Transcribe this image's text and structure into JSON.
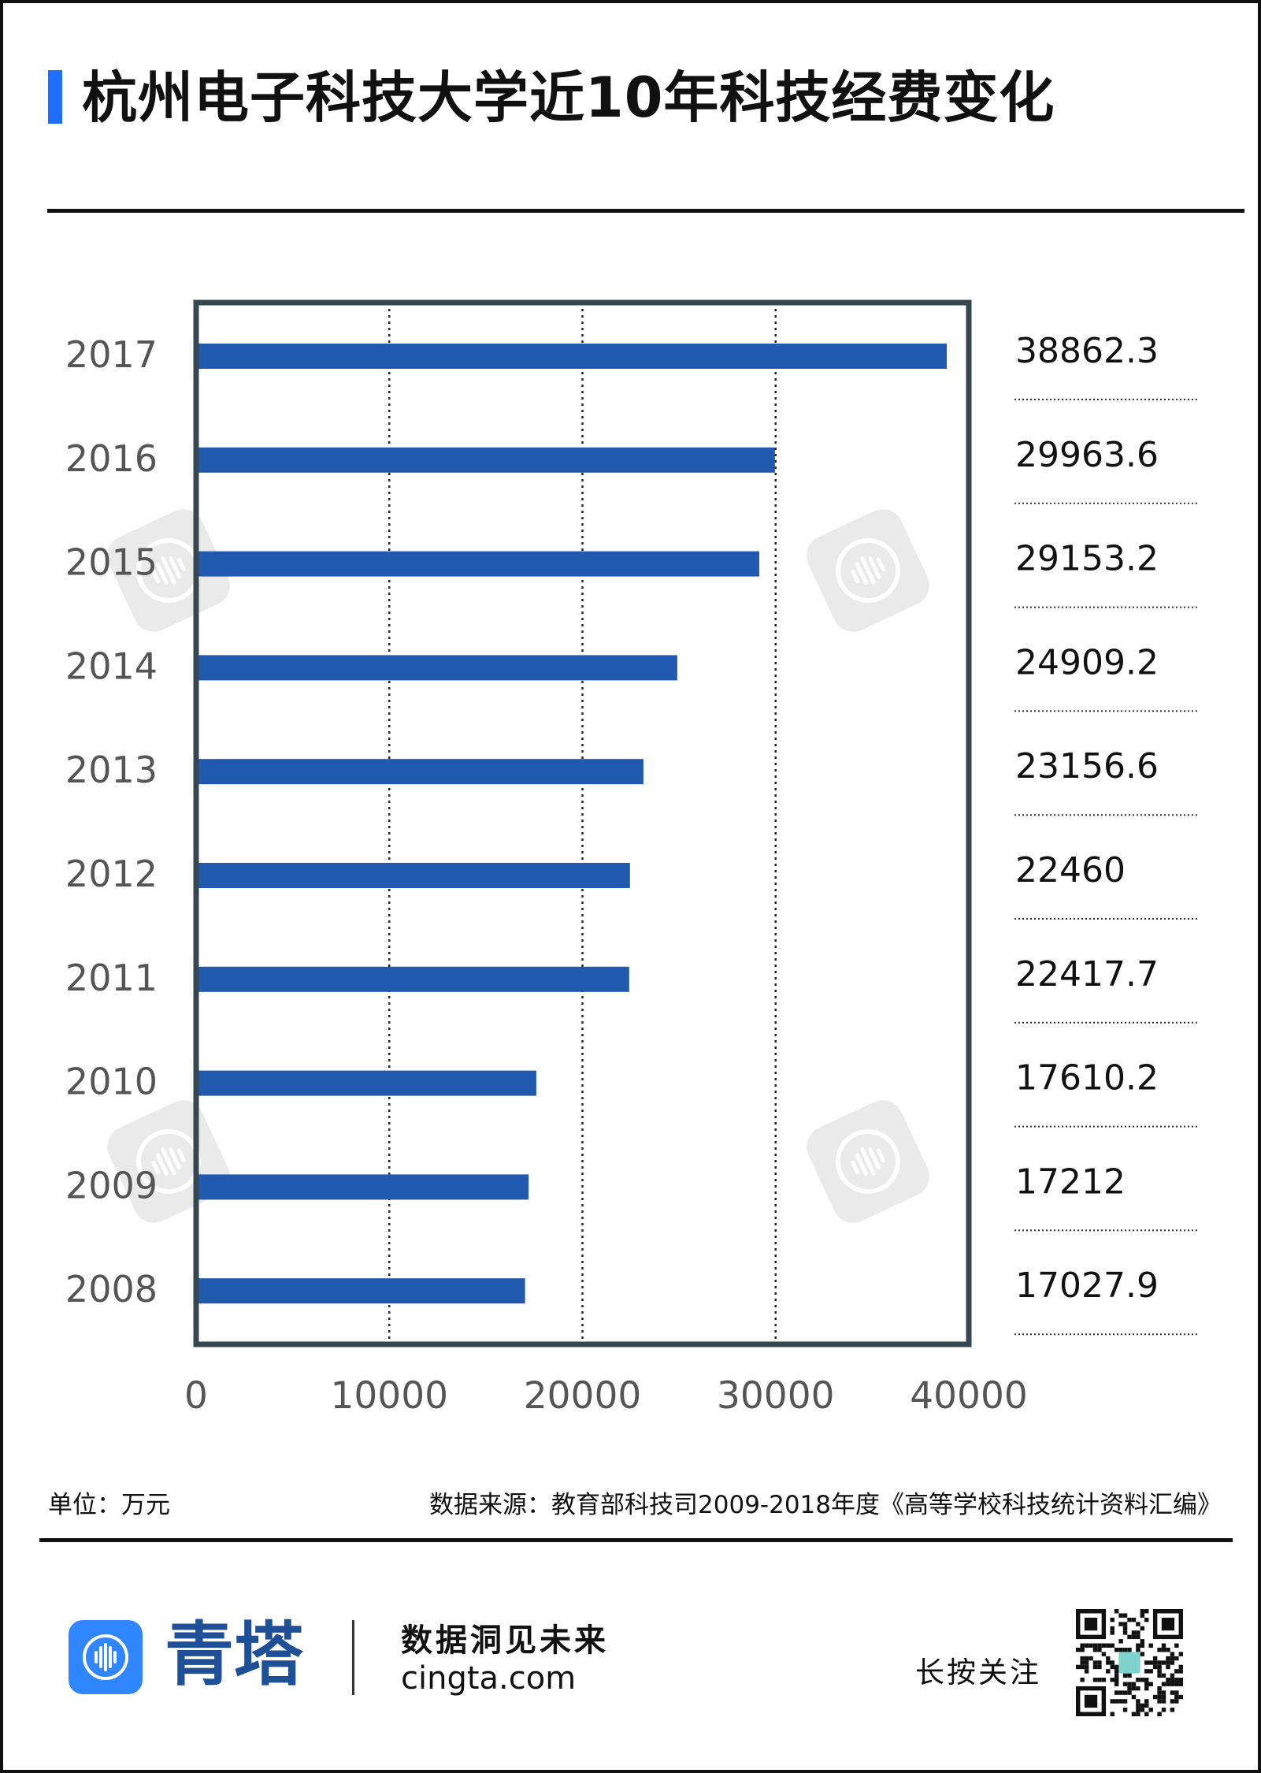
{
  "title": "杭州电子科技大学近10年科技经费变化",
  "unit_note": "单位：万元",
  "source_note": "数据来源：教育部科技司2009-2018年度《高等学校科技统计资料汇编》",
  "footer": {
    "brand": "青塔",
    "slogan": "数据洞见未来",
    "url": "cingta.com",
    "follow": "长按关注"
  },
  "colors": {
    "bar": "#2159ae",
    "frame": "#37474f",
    "title_accent": "#1e6fff",
    "brand_logo": "#2f86ff",
    "brand_text": "#1f4f96"
  },
  "chart_data": {
    "type": "bar",
    "orientation": "horizontal",
    "categories": [
      "2017",
      "2016",
      "2015",
      "2014",
      "2013",
      "2012",
      "2011",
      "2010",
      "2009",
      "2008"
    ],
    "values": [
      38862.3,
      29963.6,
      29153.2,
      24909.2,
      23156.6,
      22460,
      22417.7,
      17610.2,
      17212,
      17027.9
    ],
    "value_labels": [
      "38862.3",
      "29963.6",
      "29153.2",
      "24909.2",
      "23156.6",
      "22460",
      "22417.7",
      "17610.2",
      "17212",
      "17027.9"
    ],
    "xlim": [
      0,
      40000
    ],
    "xticks": [
      0,
      10000,
      20000,
      30000,
      40000
    ],
    "xtick_labels": [
      "0",
      "10000",
      "20000",
      "30000",
      "40000"
    ],
    "grid": "vertical dotted",
    "title": "杭州电子科技大学近10年科技经费变化",
    "xlabel": "",
    "ylabel": ""
  }
}
